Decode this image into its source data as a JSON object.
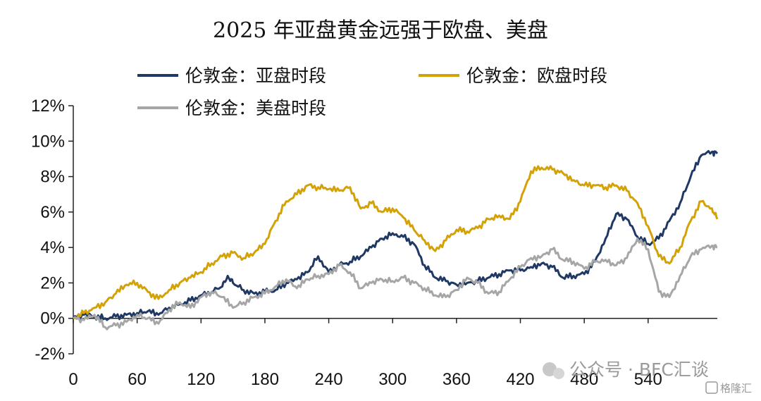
{
  "chart_data": {
    "type": "line",
    "title": "2025 年亚盘黄金远强于欧盘、美盘",
    "xlabel": "",
    "ylabel": "",
    "xlim": [
      0,
      605
    ],
    "ylim": [
      -2,
      12
    ],
    "x_ticks": [
      0,
      60,
      120,
      180,
      240,
      300,
      360,
      420,
      480,
      540
    ],
    "y_ticks": [
      -2,
      0,
      2,
      4,
      6,
      8,
      10,
      12
    ],
    "y_tick_labels": [
      "-2%",
      "0%",
      "2%",
      "4%",
      "6%",
      "8%",
      "10%",
      "12%"
    ],
    "legend": "top",
    "grid": false,
    "series": [
      {
        "name": "伦敦金：亚盘时段",
        "color": "#1f3864",
        "points": [
          [
            0,
            0
          ],
          [
            10,
            0.2
          ],
          [
            20,
            0.1
          ],
          [
            30,
            0.0
          ],
          [
            40,
            0.1
          ],
          [
            50,
            0.2
          ],
          [
            60,
            0.3
          ],
          [
            70,
            0.4
          ],
          [
            80,
            0.2
          ],
          [
            90,
            0.6
          ],
          [
            100,
            0.8
          ],
          [
            110,
            1.0
          ],
          [
            120,
            1.3
          ],
          [
            130,
            1.5
          ],
          [
            140,
            1.8
          ],
          [
            145,
            2.4
          ],
          [
            150,
            2.0
          ],
          [
            160,
            1.6
          ],
          [
            170,
            1.4
          ],
          [
            180,
            1.5
          ],
          [
            190,
            1.6
          ],
          [
            200,
            2.0
          ],
          [
            210,
            2.2
          ],
          [
            220,
            2.6
          ],
          [
            230,
            3.5
          ],
          [
            240,
            2.6
          ],
          [
            250,
            3.0
          ],
          [
            260,
            3.2
          ],
          [
            270,
            3.5
          ],
          [
            280,
            4.0
          ],
          [
            290,
            4.5
          ],
          [
            300,
            4.8
          ],
          [
            310,
            4.6
          ],
          [
            320,
            4.2
          ],
          [
            330,
            3.0
          ],
          [
            340,
            2.3
          ],
          [
            350,
            2.1
          ],
          [
            360,
            1.9
          ],
          [
            370,
            2.0
          ],
          [
            380,
            2.1
          ],
          [
            390,
            2.3
          ],
          [
            400,
            2.5
          ],
          [
            410,
            2.7
          ],
          [
            420,
            2.7
          ],
          [
            430,
            2.9
          ],
          [
            440,
            3.1
          ],
          [
            450,
            2.9
          ],
          [
            460,
            2.3
          ],
          [
            470,
            2.4
          ],
          [
            480,
            2.5
          ],
          [
            490,
            3.2
          ],
          [
            500,
            4.5
          ],
          [
            510,
            5.9
          ],
          [
            520,
            5.6
          ],
          [
            530,
            4.6
          ],
          [
            540,
            4.2
          ],
          [
            550,
            4.5
          ],
          [
            560,
            5.5
          ],
          [
            570,
            6.5
          ],
          [
            580,
            8.0
          ],
          [
            590,
            9.2
          ],
          [
            600,
            9.4
          ],
          [
            605,
            9.3
          ]
        ]
      },
      {
        "name": "伦敦金：欧盘时段",
        "color": "#d4a106",
        "points": [
          [
            0,
            0
          ],
          [
            10,
            0.3
          ],
          [
            20,
            0.6
          ],
          [
            30,
            0.9
          ],
          [
            40,
            1.4
          ],
          [
            50,
            1.9
          ],
          [
            60,
            2.0
          ],
          [
            70,
            1.5
          ],
          [
            80,
            1.1
          ],
          [
            90,
            1.6
          ],
          [
            100,
            2.0
          ],
          [
            110,
            2.3
          ],
          [
            120,
            2.6
          ],
          [
            130,
            3.1
          ],
          [
            140,
            3.5
          ],
          [
            150,
            3.7
          ],
          [
            160,
            3.4
          ],
          [
            170,
            3.7
          ],
          [
            180,
            4.2
          ],
          [
            190,
            5.5
          ],
          [
            200,
            6.6
          ],
          [
            210,
            7.0
          ],
          [
            220,
            7.5
          ],
          [
            230,
            7.4
          ],
          [
            240,
            7.3
          ],
          [
            250,
            7.2
          ],
          [
            260,
            7.4
          ],
          [
            270,
            6.2
          ],
          [
            280,
            6.5
          ],
          [
            290,
            6.0
          ],
          [
            300,
            6.2
          ],
          [
            310,
            5.7
          ],
          [
            320,
            5.0
          ],
          [
            330,
            4.4
          ],
          [
            340,
            3.8
          ],
          [
            350,
            4.4
          ],
          [
            360,
            5.0
          ],
          [
            370,
            4.9
          ],
          [
            380,
            5.1
          ],
          [
            390,
            5.6
          ],
          [
            400,
            5.8
          ],
          [
            410,
            5.6
          ],
          [
            420,
            6.6
          ],
          [
            430,
            8.3
          ],
          [
            440,
            8.5
          ],
          [
            450,
            8.4
          ],
          [
            460,
            8.2
          ],
          [
            470,
            7.8
          ],
          [
            480,
            7.5
          ],
          [
            490,
            7.5
          ],
          [
            500,
            7.4
          ],
          [
            510,
            7.5
          ],
          [
            520,
            7.2
          ],
          [
            530,
            6.5
          ],
          [
            540,
            5.2
          ],
          [
            550,
            3.5
          ],
          [
            560,
            3.1
          ],
          [
            570,
            4.0
          ],
          [
            580,
            5.5
          ],
          [
            590,
            6.6
          ],
          [
            600,
            6.2
          ],
          [
            605,
            5.6
          ]
        ]
      },
      {
        "name": "伦敦金：美盘时段",
        "color": "#a6a6a6",
        "points": [
          [
            0,
            0
          ],
          [
            10,
            -0.1
          ],
          [
            20,
            0.2
          ],
          [
            30,
            -0.5
          ],
          [
            40,
            -0.4
          ],
          [
            50,
            -0.2
          ],
          [
            60,
            0.2
          ],
          [
            70,
            0.0
          ],
          [
            80,
            -0.3
          ],
          [
            90,
            0.5
          ],
          [
            100,
            0.9
          ],
          [
            110,
            0.6
          ],
          [
            120,
            1.2
          ],
          [
            130,
            1.5
          ],
          [
            140,
            1.2
          ],
          [
            150,
            0.6
          ],
          [
            160,
            0.9
          ],
          [
            170,
            1.2
          ],
          [
            180,
            1.4
          ],
          [
            190,
            1.8
          ],
          [
            200,
            2.2
          ],
          [
            210,
            1.7
          ],
          [
            220,
            2.2
          ],
          [
            230,
            2.4
          ],
          [
            240,
            2.5
          ],
          [
            250,
            3.0
          ],
          [
            260,
            2.6
          ],
          [
            270,
            1.7
          ],
          [
            280,
            2.0
          ],
          [
            290,
            2.2
          ],
          [
            300,
            2.1
          ],
          [
            310,
            2.3
          ],
          [
            320,
            2.0
          ],
          [
            330,
            1.7
          ],
          [
            340,
            1.3
          ],
          [
            350,
            1.2
          ],
          [
            360,
            1.6
          ],
          [
            370,
            2.3
          ],
          [
            380,
            2.0
          ],
          [
            390,
            1.4
          ],
          [
            400,
            1.5
          ],
          [
            410,
            2.2
          ],
          [
            420,
            2.9
          ],
          [
            430,
            3.4
          ],
          [
            440,
            3.5
          ],
          [
            450,
            3.9
          ],
          [
            460,
            3.3
          ],
          [
            470,
            3.2
          ],
          [
            480,
            2.8
          ],
          [
            490,
            3.2
          ],
          [
            500,
            3.3
          ],
          [
            510,
            3.0
          ],
          [
            520,
            3.4
          ],
          [
            530,
            4.5
          ],
          [
            540,
            3.9
          ],
          [
            550,
            1.5
          ],
          [
            560,
            1.2
          ],
          [
            570,
            2.4
          ],
          [
            580,
            3.5
          ],
          [
            590,
            3.9
          ],
          [
            600,
            4.1
          ],
          [
            605,
            4.0
          ]
        ]
      }
    ]
  },
  "watermark": {
    "wechat": "公众号 · BFC汇谈",
    "corner": "格隆汇"
  }
}
